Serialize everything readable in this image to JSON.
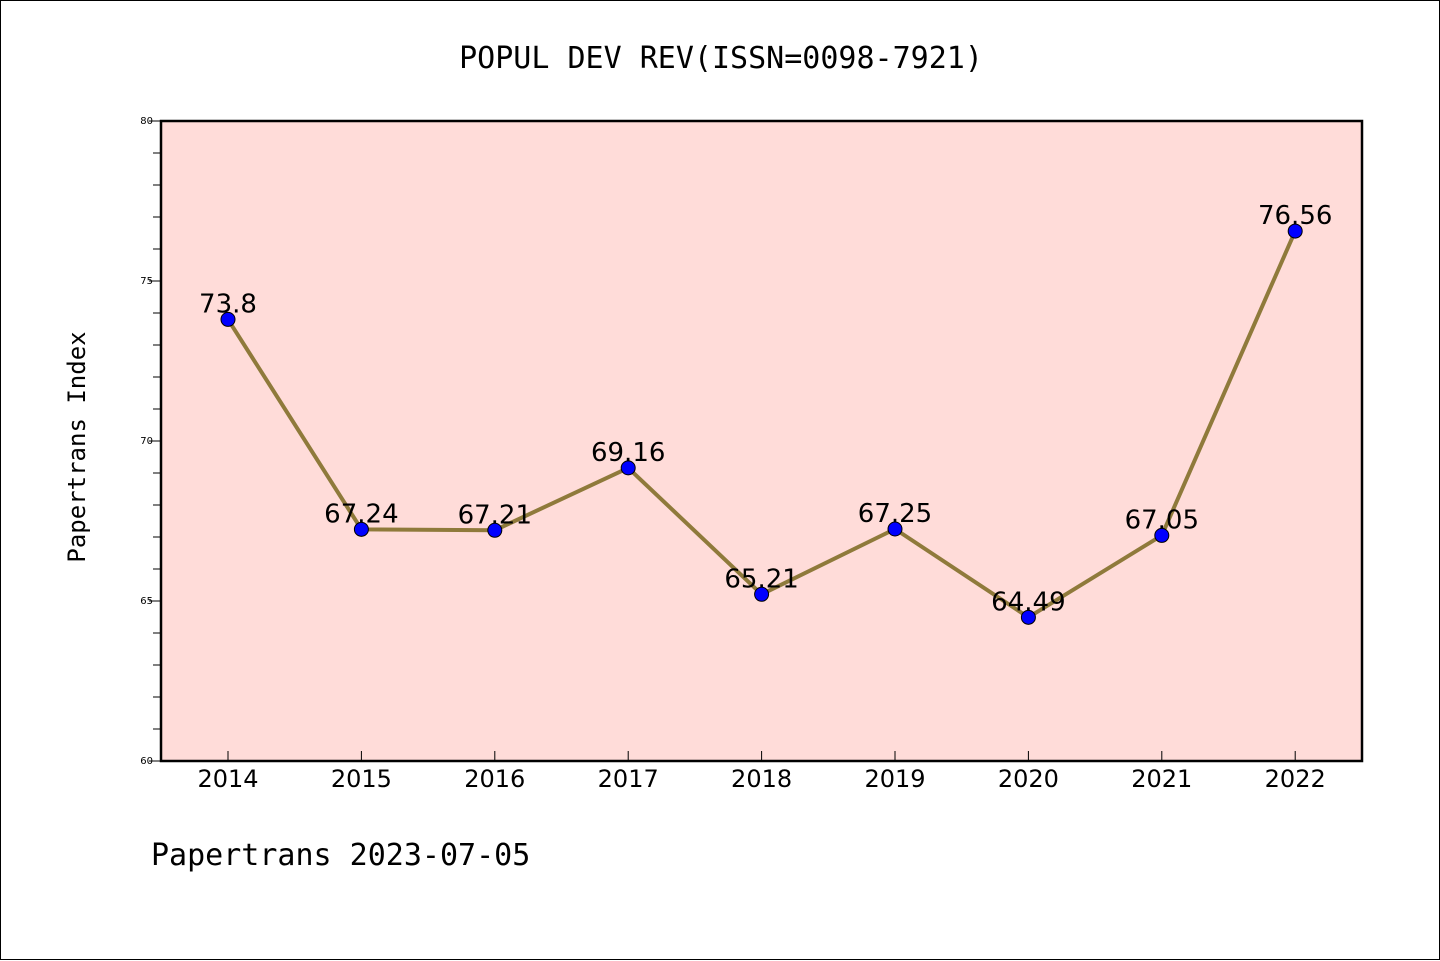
{
  "chart_data": {
    "type": "line",
    "title": "POPUL DEV REV(ISSN=0098-7921)",
    "ylabel": "Papertrans Index",
    "xlabel": "",
    "footer": "Papertrans 2023-07-05",
    "categories": [
      "2014",
      "2015",
      "2016",
      "2017",
      "2018",
      "2019",
      "2020",
      "2021",
      "2022"
    ],
    "values": [
      73.8,
      67.24,
      67.21,
      69.16,
      65.21,
      67.25,
      64.49,
      67.05,
      76.56
    ],
    "data_labels": [
      "73.8",
      "67.24",
      "67.21",
      "69.16",
      "65.21",
      "67.25",
      "64.49",
      "67.05",
      "76.56"
    ],
    "ylim": [
      60,
      80
    ],
    "yticks": [
      60,
      65,
      70,
      75,
      80
    ],
    "grid": false,
    "colors": {
      "plot_background": "#ffdcd9",
      "line": "#8f7a3b",
      "marker": "#0000ff"
    }
  }
}
